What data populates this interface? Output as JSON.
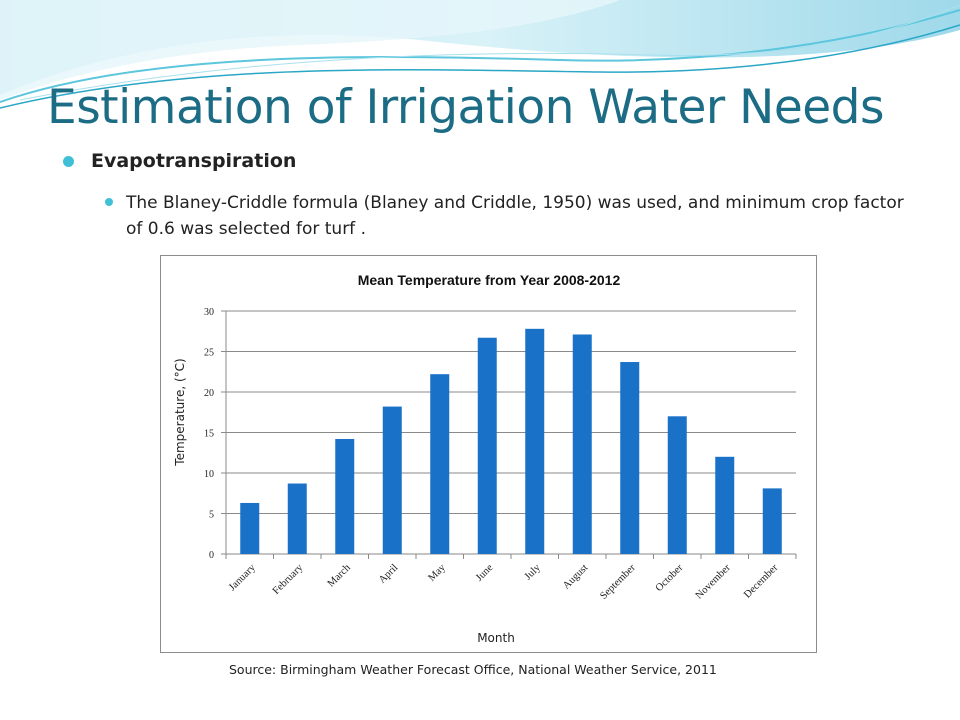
{
  "slide": {
    "title": "Estimation of Irrigation Water Needs",
    "bullet1": "Evapotranspiration",
    "bullet2": "The Blaney-Criddle formula (Blaney and Criddle, 1950) was used, and minimum crop factor of 0.6 was selected for turf .",
    "source": "Source: Birmingham Weather Forecast Office, National Weather Service, 2011"
  },
  "colors": {
    "title": "#1b6c84",
    "bullet": "#3fc0d6",
    "bar": "#1a71c8"
  },
  "chart_data": {
    "type": "bar",
    "title": "Mean Temperature from Year 2008-2012",
    "xlabel": "Month",
    "ylabel": "Temperature, (°C)",
    "categories": [
      "January",
      "February",
      "March",
      "April",
      "May",
      "June",
      "July",
      "August",
      "September",
      "October",
      "November",
      "December"
    ],
    "values": [
      6.3,
      8.7,
      14.2,
      18.2,
      22.2,
      26.7,
      27.8,
      27.1,
      23.7,
      17.0,
      12.0,
      8.1
    ],
    "ylim": [
      0,
      30
    ],
    "yticks": [
      0,
      5,
      10,
      15,
      20,
      25,
      30
    ],
    "grid": true,
    "legend": "none"
  }
}
